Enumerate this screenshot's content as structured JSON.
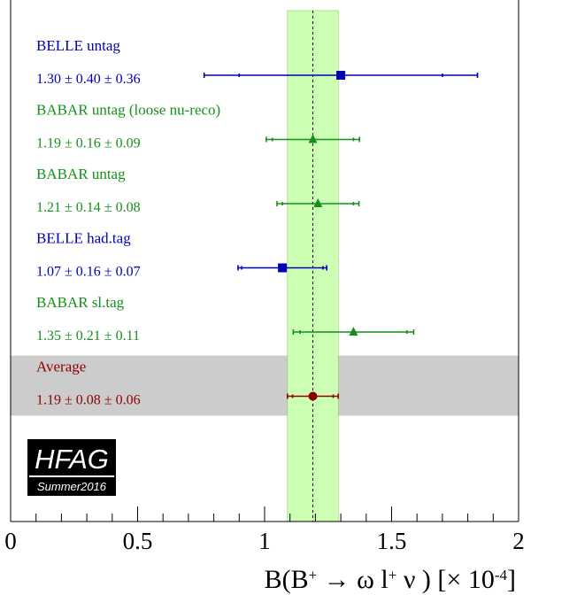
{
  "chart_data": {
    "type": "scatter",
    "orientation": "horizontal-error-bars",
    "xlim": [
      0,
      2
    ],
    "x_ticks": [
      "0",
      "0.5",
      "1",
      "1.5",
      "2"
    ],
    "xlabel": "B(B⁺ → ω l⁺ ν ) [× 10⁻⁴]",
    "xlabel_parts": {
      "prefix": "B(B",
      "sup1": "+",
      "middle": " → ω l",
      "sup2": "+",
      "suffix": " ν ) [× 10",
      "sup3": "-4",
      "end": "]"
    },
    "grid": false,
    "average_band": [
      1.09,
      1.29
    ],
    "average_line": 1.19,
    "measurements": [
      {
        "label": "BELLE untag",
        "value_text": "1.30 ± 0.40 ± 0.36",
        "value": 1.3,
        "stat": 0.4,
        "syst": 0.36,
        "color": "#0000b0",
        "marker": "square"
      },
      {
        "label": "BABAR untag (loose nu-reco)",
        "value_text": "1.19 ± 0.16 ± 0.09",
        "value": 1.19,
        "stat": 0.16,
        "syst": 0.09,
        "color": "#15901a",
        "marker": "triangle"
      },
      {
        "label": "BABAR untag",
        "value_text": "1.21 ± 0.14 ± 0.08",
        "value": 1.21,
        "stat": 0.14,
        "syst": 0.08,
        "color": "#15901a",
        "marker": "triangle"
      },
      {
        "label": "BELLE had.tag",
        "value_text": "1.07 ± 0.16 ± 0.07",
        "value": 1.07,
        "stat": 0.16,
        "syst": 0.07,
        "color": "#0000b0",
        "marker": "square"
      },
      {
        "label": "BABAR sl.tag",
        "value_text": "1.35 ± 0.21 ± 0.11",
        "value": 1.35,
        "stat": 0.21,
        "syst": 0.11,
        "color": "#15901a",
        "marker": "triangle"
      },
      {
        "label": "Average",
        "value_text": "1.19 ± 0.08 ± 0.06",
        "value": 1.19,
        "stat": 0.08,
        "syst": 0.06,
        "color": "#8b0000",
        "marker": "circle",
        "is_average": true
      }
    ],
    "logo": {
      "main": "HFAG",
      "sub": "Summer2016"
    },
    "colors": {
      "band": "#ccffb3",
      "band_edge": "#88cc66",
      "average_row": "#cccccc",
      "axis": "#000000"
    }
  }
}
